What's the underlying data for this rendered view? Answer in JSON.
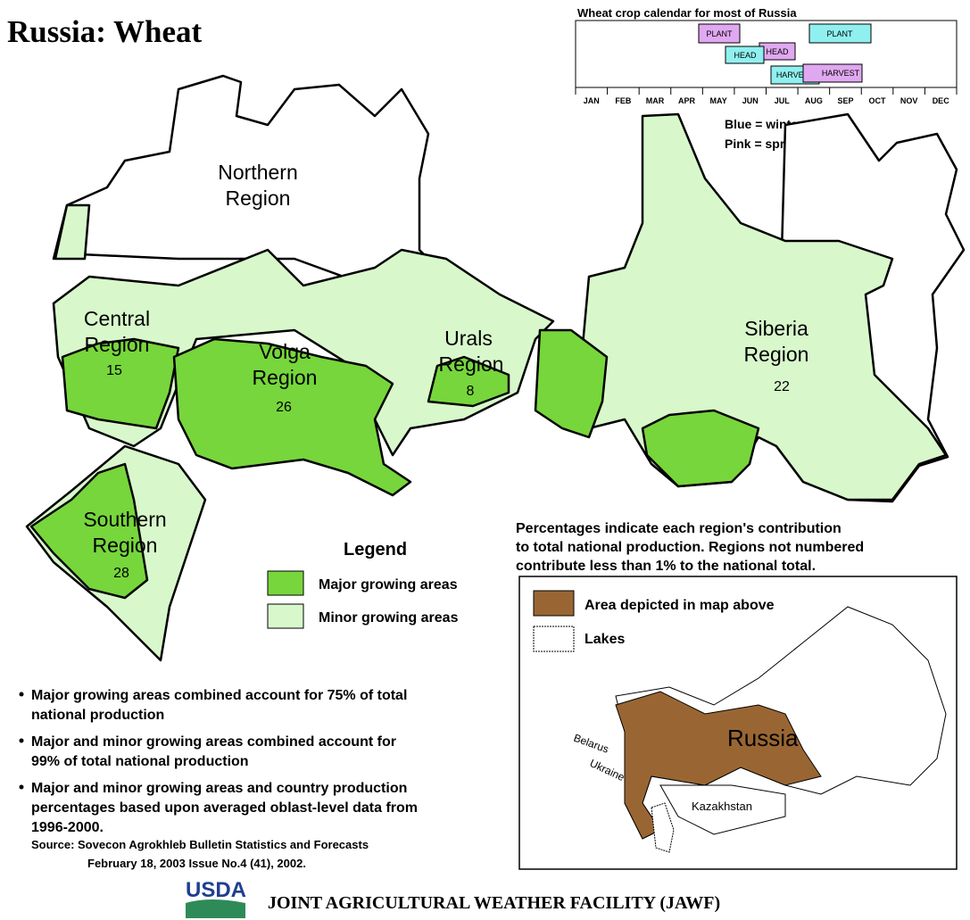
{
  "title": "Russia: Wheat",
  "calendar": {
    "title": "Wheat crop calendar for most of Russia",
    "months": [
      "JAN",
      "FEB",
      "MAR",
      "APR",
      "MAY",
      "JUN",
      "JUL",
      "AUG",
      "SEP",
      "OCT",
      "NOV",
      "DEC"
    ],
    "bars": [
      {
        "label": "PLANT",
        "color": "#e0a8f0"
      },
      {
        "label": "PLANT",
        "color": "#90f0f0"
      },
      {
        "label": "HEAD",
        "color": "#e0a8f0"
      },
      {
        "label": "HEAD",
        "color": "#90f0f0"
      },
      {
        "label": "HARVEST",
        "color": "#90f0f0"
      },
      {
        "label": "HARVEST",
        "color": "#e0a8f0"
      }
    ],
    "notes": [
      "Blue = winter wheat",
      "Pink = spring wheat"
    ]
  },
  "regions": [
    {
      "name_lines": [
        "Northern",
        "Region"
      ]
    },
    {
      "name_lines": [
        "Central",
        "Region"
      ],
      "value": 15
    },
    {
      "name_lines": [
        "Volga",
        "Region"
      ],
      "value": 26
    },
    {
      "name_lines": [
        "Urals",
        "Region"
      ],
      "value": 8
    },
    {
      "name_lines": [
        "Siberia",
        "Region"
      ],
      "value": 22
    },
    {
      "name_lines": [
        "Southern",
        "Region"
      ],
      "value": 28
    }
  ],
  "legend": {
    "title": "Legend",
    "items": [
      {
        "label": "Major growing areas",
        "color": "#77d63c"
      },
      {
        "label": "Minor growing areas",
        "color": "#d8f8cc"
      }
    ]
  },
  "percent_note": [
    "Percentages indicate each region's contribution",
    "to total national production.  Regions not numbered",
    "contribute less than 1% to the national total."
  ],
  "inset": {
    "legend": [
      {
        "label": "Area depicted in map above",
        "color": "#996633"
      },
      {
        "label": "Lakes",
        "color": "#ffffff"
      }
    ],
    "labels": {
      "russia": "Russia",
      "belarus": "Belarus",
      "ukraine": "Ukraine",
      "kazakhstan": "Kazakhstan"
    }
  },
  "bullets": [
    [
      "Major growing areas combined account for 75% of total",
      "national production"
    ],
    [
      "Major and minor growing areas combined account for",
      "99% of total national production"
    ],
    [
      "Major and minor growing areas and country production",
      "percentages based upon averaged oblast-level data from",
      "1996-2000."
    ]
  ],
  "source": [
    "Source: Sovecon Agrokhleb Bulletin Statistics and Forecasts",
    "February 18, 2003 Issue No.4 (41), 2002."
  ],
  "footer": {
    "logo": "USDA",
    "agency": "JOINT AGRICULTURAL WEATHER FACILITY (JAWF)"
  }
}
